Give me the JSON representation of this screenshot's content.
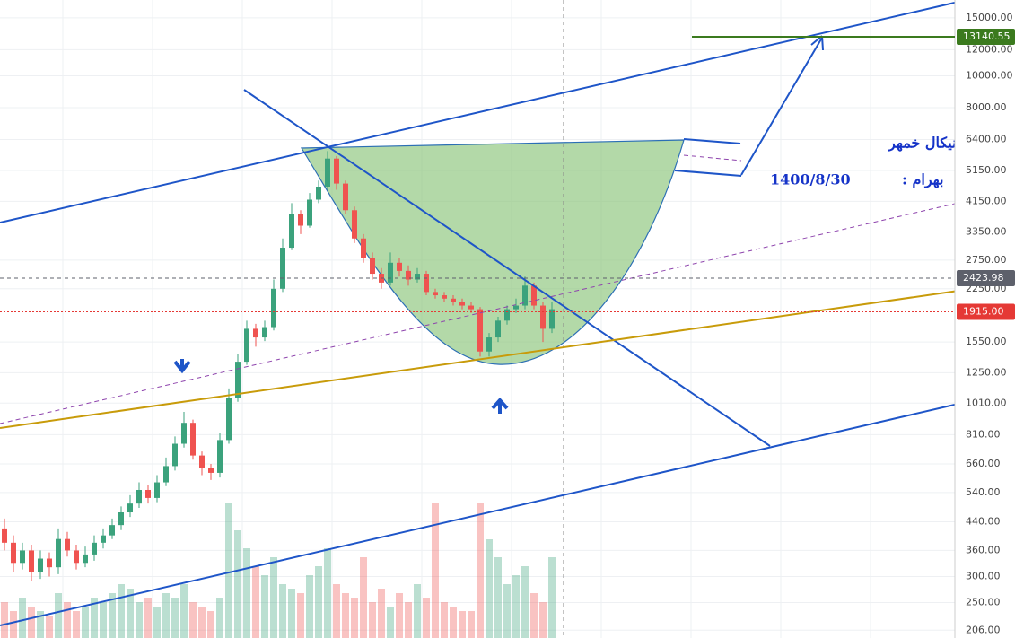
{
  "chart_data": {
    "type": "candlestick",
    "annotations": [
      "تحليل تكنيكال خمهر",
      "1400/8/30",
      "بهرام  :"
    ],
    "log_scale": true,
    "grid": true,
    "ylim": [
      195,
      17000
    ],
    "yticks": [
      {
        "value": 15000,
        "label": "15000.00"
      },
      {
        "value": 12000,
        "label": "12000.00"
      },
      {
        "value": 10000,
        "label": "10000.00"
      },
      {
        "value": 8000,
        "label": "8000.00"
      },
      {
        "value": 6400,
        "label": "6400.00"
      },
      {
        "value": 5150,
        "label": "5150.00"
      },
      {
        "value": 4150,
        "label": "4150.00"
      },
      {
        "value": 3350,
        "label": "3350.00"
      },
      {
        "value": 2750,
        "label": "2750.00"
      },
      {
        "value": 2250,
        "label": "2250.00"
      },
      {
        "value": 1550,
        "label": "1550.00"
      },
      {
        "value": 1250,
        "label": "1250.00"
      },
      {
        "value": 1010,
        "label": "1010.00"
      },
      {
        "value": 810,
        "label": "810.00"
      },
      {
        "value": 660,
        "label": "660.00"
      },
      {
        "value": 540,
        "label": "540.00"
      },
      {
        "value": 440,
        "label": "440.00"
      },
      {
        "value": 360,
        "label": "360.00"
      },
      {
        "value": 300,
        "label": "300.00"
      },
      {
        "value": 250,
        "label": "250.00"
      },
      {
        "value": 206,
        "label": "206.00"
      }
    ],
    "price_labels": [
      {
        "value": 13140.55,
        "label": "13140.55",
        "color": "#3b7a1e"
      },
      {
        "value": 2423.98,
        "label": "2423.98",
        "color": "#5d606b"
      },
      {
        "value": 1915,
        "label": "1915.00",
        "color": "#e53935"
      }
    ],
    "up_color": "#3ba27c",
    "down_color": "#ef5350",
    "open": [
      420,
      380,
      330,
      360,
      310,
      340,
      320,
      390,
      360,
      330,
      350,
      380,
      400,
      430,
      470,
      500,
      550,
      520,
      580,
      650,
      760,
      880,
      700,
      640,
      620,
      780,
      1050,
      1350,
      1700,
      1600,
      1720,
      2250,
      3000,
      3800,
      3500,
      4200,
      4600,
      5600,
      4700,
      3900,
      3200,
      2800,
      2500,
      2350,
      2700,
      2550,
      2400,
      2500,
      2200,
      2150,
      2100,
      2050,
      2000,
      1950,
      1450,
      1600,
      1800,
      1950,
      2000,
      2300,
      2000,
      1700
    ],
    "high": [
      450,
      400,
      380,
      375,
      360,
      355,
      420,
      410,
      375,
      370,
      400,
      420,
      450,
      490,
      530,
      580,
      570,
      610,
      690,
      800,
      950,
      900,
      720,
      660,
      820,
      1120,
      1420,
      1800,
      1760,
      1800,
      2400,
      3200,
      4100,
      3900,
      4400,
      4800,
      5900,
      5700,
      4800,
      4000,
      3300,
      2900,
      2600,
      2900,
      2800,
      2650,
      2600,
      2550,
      2250,
      2200,
      2150,
      2100,
      2050,
      1980,
      1650,
      1850,
      2000,
      2100,
      2450,
      2350,
      2050,
      2050
    ],
    "low": [
      360,
      310,
      315,
      290,
      295,
      300,
      305,
      345,
      315,
      320,
      335,
      365,
      390,
      415,
      455,
      485,
      500,
      505,
      565,
      630,
      740,
      680,
      610,
      590,
      600,
      760,
      1020,
      1320,
      1500,
      1560,
      1680,
      2200,
      2950,
      3300,
      3450,
      4100,
      4500,
      4500,
      3800,
      3100,
      2700,
      2400,
      2250,
      2300,
      2450,
      2300,
      2350,
      2150,
      2100,
      2050,
      2000,
      1950,
      1900,
      1400,
      1400,
      1550,
      1750,
      1900,
      1950,
      1950,
      1550,
      1650
    ],
    "close": [
      380,
      330,
      360,
      310,
      340,
      320,
      390,
      360,
      330,
      350,
      380,
      400,
      430,
      470,
      500,
      550,
      520,
      580,
      650,
      760,
      880,
      700,
      640,
      620,
      780,
      1050,
      1350,
      1700,
      1600,
      1720,
      2250,
      3000,
      3800,
      3500,
      4200,
      4600,
      5600,
      4700,
      3900,
      3200,
      2800,
      2500,
      2350,
      2700,
      2550,
      2400,
      2500,
      2200,
      2150,
      2100,
      2050,
      2000,
      1950,
      1450,
      1600,
      1800,
      1950,
      2000,
      2300,
      2000,
      1700,
      1950
    ],
    "volume": [
      40,
      30,
      45,
      35,
      30,
      25,
      50,
      40,
      30,
      35,
      45,
      40,
      50,
      60,
      55,
      40,
      45,
      35,
      50,
      45,
      60,
      40,
      35,
      30,
      45,
      150,
      120,
      100,
      80,
      70,
      90,
      60,
      55,
      50,
      70,
      80,
      100,
      60,
      50,
      45,
      90,
      40,
      55,
      35,
      50,
      40,
      60,
      45,
      150,
      40,
      35,
      30,
      30,
      150,
      110,
      90,
      60,
      70,
      80,
      50,
      40,
      90
    ]
  }
}
